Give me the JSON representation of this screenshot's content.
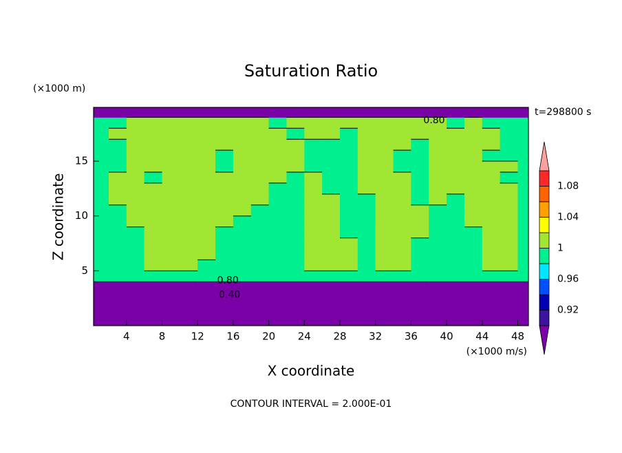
{
  "chart_data": {
    "type": "contour",
    "title": "Saturation Ratio",
    "y_unit": "(×1000 m)",
    "x_unit": "(×1000 m/s)",
    "time_label": "t=298800 s",
    "xlabel": "X coordinate",
    "ylabel": "Z coordinate",
    "footer": "CONTOUR INTERVAL = 2.000E-01",
    "xlim": [
      0.3,
      49.2
    ],
    "ylim": [
      0,
      19.9
    ],
    "xticks": [
      4,
      8,
      12,
      16,
      20,
      24,
      28,
      32,
      36,
      40,
      44,
      48
    ],
    "yticks": [
      5,
      10,
      15
    ],
    "colorbar": {
      "levels": [
        0.9,
        0.92,
        0.94,
        0.96,
        0.98,
        1.0,
        1.02,
        1.04,
        1.06,
        1.08,
        1.1
      ],
      "colors": [
        "#7a00a8",
        "#3c14a0",
        "#0000b4",
        "#0050ff",
        "#00e6ff",
        "#00f090",
        "#a0e632",
        "#ffff00",
        "#ffa000",
        "#ff6400",
        "#ff2828",
        "#ffa0a0"
      ],
      "ticks": [
        0.92,
        0.96,
        1,
        1.04,
        1.08
      ]
    },
    "contour_labels": [
      {
        "label": "0.80",
        "value": 0.8,
        "x": 15.4,
        "z": 4.1
      },
      {
        "label": "0.40",
        "value": 0.4,
        "x": 15.6,
        "z": 2.8
      },
      {
        "label": "0.80",
        "value": 0.8,
        "x": 38.6,
        "z": 18.7
      }
    ],
    "field": {
      "x": [
        1,
        3,
        5,
        7,
        9,
        11,
        13,
        15,
        17,
        19,
        21,
        23,
        25,
        27,
        29,
        31,
        33,
        35,
        37,
        39,
        41,
        43,
        45,
        47,
        49
      ],
      "z": [
        0.5,
        1.5,
        2.5,
        3.5,
        4.5,
        5.5,
        6.5,
        7.5,
        8.5,
        9.5,
        10.5,
        11.5,
        12.5,
        13.5,
        14.5,
        15.5,
        16.5,
        17.5,
        18.5,
        19.5
      ],
      "values": [
        [
          0.1,
          0.1,
          0.1,
          0.1,
          0.1,
          0.1,
          0.1,
          0.1,
          0.1,
          0.1,
          0.1,
          0.1,
          0.1,
          0.1,
          0.1,
          0.1,
          0.1,
          0.1,
          0.1,
          0.1,
          0.1,
          0.1,
          0.1,
          0.1,
          0.1
        ],
        [
          0.25,
          0.25,
          0.25,
          0.25,
          0.25,
          0.25,
          0.25,
          0.25,
          0.25,
          0.25,
          0.25,
          0.25,
          0.25,
          0.25,
          0.25,
          0.25,
          0.25,
          0.25,
          0.25,
          0.25,
          0.25,
          0.25,
          0.25,
          0.25,
          0.25
        ],
        [
          0.35,
          0.35,
          0.35,
          0.35,
          0.35,
          0.35,
          0.35,
          0.35,
          0.35,
          0.35,
          0.35,
          0.35,
          0.35,
          0.35,
          0.35,
          0.35,
          0.35,
          0.35,
          0.35,
          0.35,
          0.35,
          0.35,
          0.35,
          0.35,
          0.35
        ],
        [
          0.6,
          0.6,
          0.6,
          0.6,
          0.6,
          0.6,
          0.6,
          0.6,
          0.6,
          0.6,
          0.6,
          0.6,
          0.6,
          0.6,
          0.6,
          0.6,
          0.6,
          0.6,
          0.6,
          0.6,
          0.6,
          0.6,
          0.6,
          0.6,
          0.6
        ],
        [
          0.99,
          0.99,
          0.99,
          0.99,
          0.99,
          0.99,
          0.99,
          0.99,
          0.99,
          0.99,
          0.99,
          0.99,
          0.99,
          0.99,
          0.99,
          0.99,
          0.99,
          0.99,
          0.99,
          0.99,
          0.99,
          0.99,
          0.99,
          0.99,
          0.99
        ],
        [
          0.99,
          0.99,
          0.99,
          1.01,
          1.01,
          1.01,
          0.99,
          0.99,
          0.99,
          0.99,
          0.99,
          0.99,
          1.01,
          1.01,
          1.01,
          0.99,
          1.01,
          1.01,
          0.99,
          0.99,
          0.99,
          0.99,
          1.01,
          1.01,
          0.99
        ],
        [
          0.99,
          0.99,
          0.99,
          1.01,
          1.01,
          1.01,
          1.01,
          0.99,
          0.99,
          0.99,
          0.99,
          0.99,
          1.01,
          1.01,
          1.01,
          0.99,
          1.01,
          1.01,
          0.99,
          0.99,
          0.99,
          0.99,
          1.01,
          1.01,
          0.99
        ],
        [
          0.99,
          0.99,
          0.99,
          1.01,
          1.01,
          1.01,
          1.01,
          0.99,
          0.99,
          0.99,
          0.99,
          0.99,
          1.01,
          1.01,
          1.01,
          0.99,
          1.01,
          1.01,
          0.99,
          0.99,
          0.99,
          0.99,
          1.01,
          1.01,
          0.99
        ],
        [
          0.99,
          0.99,
          0.99,
          1.01,
          1.01,
          1.01,
          1.01,
          0.99,
          0.99,
          0.99,
          0.99,
          0.99,
          1.01,
          1.01,
          0.99,
          0.99,
          1.01,
          1.01,
          1.01,
          0.99,
          0.99,
          0.99,
          1.01,
          1.01,
          0.99
        ],
        [
          0.99,
          0.99,
          1.01,
          1.01,
          1.01,
          1.01,
          1.01,
          1.01,
          0.99,
          0.99,
          0.99,
          0.99,
          1.01,
          1.01,
          0.99,
          0.99,
          1.01,
          1.01,
          1.01,
          0.99,
          0.99,
          1.01,
          1.01,
          1.01,
          0.99
        ],
        [
          0.99,
          0.99,
          1.01,
          1.01,
          1.01,
          1.01,
          1.01,
          1.01,
          1.01,
          0.99,
          0.99,
          0.99,
          1.01,
          1.01,
          0.99,
          0.99,
          1.01,
          1.01,
          1.01,
          0.99,
          0.99,
          1.01,
          1.01,
          1.01,
          0.99
        ],
        [
          0.99,
          1.01,
          1.01,
          1.01,
          1.01,
          1.01,
          1.01,
          1.01,
          1.01,
          1.01,
          0.99,
          0.99,
          1.01,
          1.01,
          0.99,
          0.99,
          1.01,
          1.01,
          0.99,
          1.01,
          0.99,
          1.01,
          1.01,
          1.01,
          0.99
        ],
        [
          0.99,
          1.01,
          1.01,
          1.01,
          1.01,
          1.01,
          1.01,
          1.01,
          1.01,
          1.01,
          0.99,
          0.99,
          1.01,
          0.99,
          0.99,
          1.01,
          1.01,
          1.01,
          0.99,
          1.01,
          1.01,
          1.01,
          1.01,
          1.01,
          0.99
        ],
        [
          0.99,
          1.01,
          1.01,
          0.99,
          1.01,
          1.01,
          1.01,
          1.01,
          1.01,
          1.01,
          1.01,
          0.99,
          1.01,
          0.99,
          0.99,
          1.01,
          1.01,
          1.01,
          0.99,
          1.01,
          1.01,
          1.01,
          1.01,
          0.99,
          0.99
        ],
        [
          0.99,
          0.99,
          1.01,
          1.01,
          1.01,
          1.01,
          1.01,
          0.99,
          1.01,
          1.01,
          1.01,
          1.01,
          0.99,
          0.99,
          0.99,
          1.01,
          1.01,
          0.99,
          0.99,
          1.01,
          1.01,
          1.01,
          1.01,
          1.01,
          0.99
        ],
        [
          0.99,
          0.99,
          1.01,
          1.01,
          1.01,
          1.01,
          1.01,
          0.99,
          1.01,
          1.01,
          1.01,
          1.01,
          0.99,
          0.99,
          0.99,
          1.01,
          1.01,
          0.99,
          0.99,
          1.01,
          1.01,
          1.01,
          0.99,
          0.99,
          0.99
        ],
        [
          0.99,
          0.99,
          1.01,
          1.01,
          1.01,
          1.01,
          1.01,
          1.01,
          1.01,
          1.01,
          1.01,
          1.01,
          0.99,
          0.99,
          0.99,
          1.01,
          1.01,
          1.01,
          0.99,
          1.01,
          1.01,
          1.01,
          1.01,
          0.99,
          0.99
        ],
        [
          0.99,
          1.01,
          1.01,
          1.01,
          1.01,
          1.01,
          1.01,
          1.01,
          1.01,
          1.01,
          1.01,
          0.99,
          1.01,
          1.01,
          0.99,
          1.01,
          1.01,
          1.01,
          1.01,
          1.01,
          1.01,
          1.01,
          1.01,
          0.99,
          0.99
        ],
        [
          0.99,
          0.99,
          1.01,
          1.01,
          1.01,
          1.01,
          1.01,
          1.01,
          1.01,
          1.01,
          0.99,
          1.01,
          1.01,
          1.01,
          1.01,
          1.01,
          1.01,
          1.01,
          1.01,
          1.01,
          0.99,
          1.01,
          0.99,
          0.99,
          0.99
        ],
        [
          0.85,
          0.85,
          0.85,
          0.85,
          0.85,
          0.85,
          0.85,
          0.85,
          0.85,
          0.85,
          0.85,
          0.85,
          0.85,
          0.85,
          0.85,
          0.85,
          0.85,
          0.85,
          0.85,
          0.85,
          0.85,
          0.85,
          0.85,
          0.85,
          0.85
        ]
      ]
    }
  }
}
